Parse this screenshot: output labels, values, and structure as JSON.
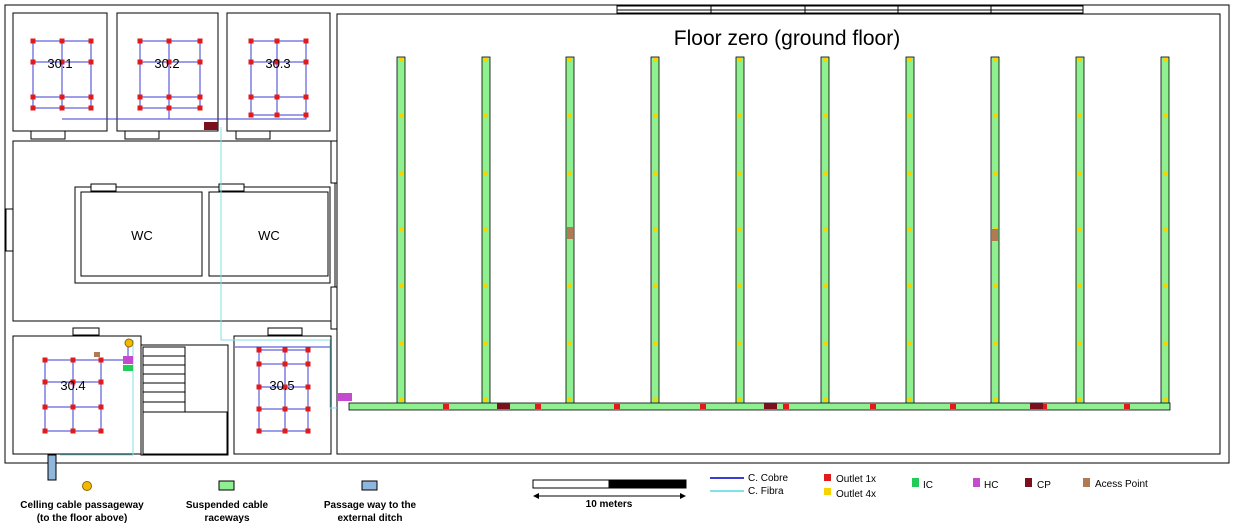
{
  "title": "Floor zero (ground floor)",
  "rooms": {
    "r301": "30.1",
    "r302": "30.2",
    "r303": "30.3",
    "r304": "30.4",
    "r305": "30.5",
    "wc_left": "WC",
    "wc_right": "WC"
  },
  "legend": {
    "ceiling_line1": "Celling cable passageway",
    "ceiling_line2": "(to the floor above)",
    "raceway_line1": "Suspended cable",
    "raceway_line2": "raceways",
    "ditch_line1": "Passage way to the",
    "ditch_line2": "external ditch",
    "scale": "10 meters",
    "cobre": "C. Cobre",
    "fibra": "C. Fibra",
    "outlet1": "Outlet  1x",
    "outlet4": "Outlet 4x",
    "ic": "IC",
    "hc": "HC",
    "cp": "CP",
    "ap": "Acess Point"
  },
  "colors": {
    "copper": "#3b3bd6",
    "fiber": "#7fe3e8",
    "outlet1": "#e01b1b",
    "outlet4": "#f5d400",
    "raceway": "#8ef08e",
    "ic": "#22cc55",
    "hc": "#c44bd0",
    "cp": "#7a0f1e",
    "ap": "#b07a55",
    "ceiling": "#f5b800",
    "ditch": "#8fb6dd"
  }
}
